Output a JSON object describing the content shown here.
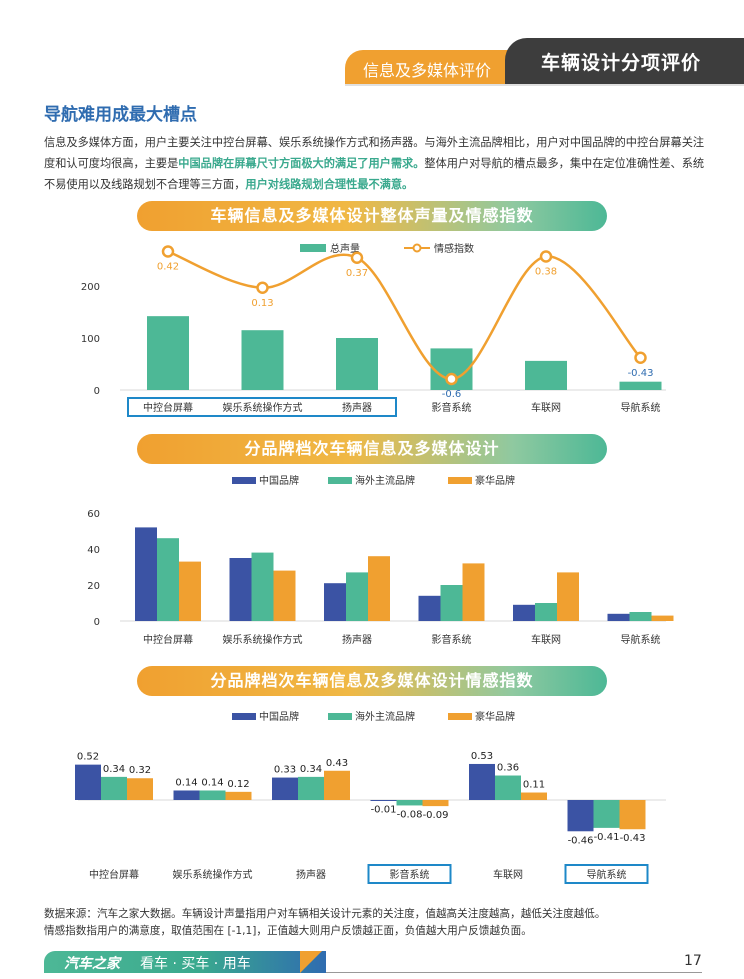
{
  "header": {
    "section_tab": "信息及多媒体评价",
    "current_tab": "车辆设计分项评价"
  },
  "section_title": "导航难用成最大槽点",
  "paragraph": {
    "p1": "信息及多媒体方面，用户主要关注中控台屏幕、娱乐系统操作方式和扬声器。与海外主流品牌相比，用户对中国品牌的中控台屏幕关注度和认可度均很高，主要是",
    "h1": "中国品牌在屏幕尺寸方面极大的满足了用户需求。",
    "p2": "整体用户对导航的槽点最多，集中在定位准确性差、系统不易使用以及线路规划不合理等三方面，",
    "h2": "用户对线路规划合理性最不满意。"
  },
  "colors": {
    "green": "#4db896",
    "orange": "#f0a030",
    "blue": "#3b53a4",
    "highlight": "#3aa98e",
    "negative_label": "#2f6cb0",
    "box": "#1e88c8"
  },
  "chart_data": [
    {
      "type": "bar",
      "title": "车辆信息及多媒体设计整体声量及情感指数",
      "categories": [
        "中控台屏幕",
        "娱乐系统操作方式",
        "扬声器",
        "影音系统",
        "车联网",
        "导航系统"
      ],
      "series": [
        {
          "name": "总声量",
          "type": "bar",
          "values": [
            142,
            115,
            100,
            80,
            56,
            16
          ]
        },
        {
          "name": "情感指数",
          "type": "line",
          "values": [
            0.42,
            0.13,
            0.37,
            -0.6,
            0.38,
            -0.43
          ]
        }
      ],
      "yticks": [
        "0",
        "100",
        "200"
      ],
      "ylim": [
        0,
        200
      ],
      "highlight_categories": [
        "中控台屏幕",
        "娱乐系统操作方式",
        "扬声器"
      ]
    },
    {
      "type": "bar",
      "title": "分品牌档次车辆信息及多媒体设计",
      "categories": [
        "中控台屏幕",
        "娱乐系统操作方式",
        "扬声器",
        "影音系统",
        "车联网",
        "导航系统"
      ],
      "series": [
        {
          "name": "中国品牌",
          "values": [
            52,
            35,
            21,
            14,
            9,
            4
          ]
        },
        {
          "name": "海外主流品牌",
          "values": [
            46,
            38,
            27,
            20,
            10,
            5
          ]
        },
        {
          "name": "豪华品牌",
          "values": [
            33,
            28,
            36,
            32,
            27,
            3
          ]
        }
      ],
      "yticks": [
        "0",
        "20",
        "40",
        "60"
      ],
      "ylim": [
        0,
        60
      ]
    },
    {
      "type": "bar",
      "title": "分品牌档次车辆信息及多媒体设计情感指数",
      "categories": [
        "中控台屏幕",
        "娱乐系统操作方式",
        "扬声器",
        "影音系统",
        "车联网",
        "导航系统"
      ],
      "series": [
        {
          "name": "中国品牌",
          "values": [
            0.52,
            0.14,
            0.33,
            -0.01,
            0.53,
            -0.46
          ]
        },
        {
          "name": "海外主流品牌",
          "values": [
            0.34,
            0.14,
            0.34,
            -0.08,
            0.36,
            -0.41
          ]
        },
        {
          "name": "豪华品牌",
          "values": [
            0.32,
            0.12,
            0.43,
            -0.09,
            0.11,
            -0.43
          ]
        }
      ],
      "highlight_categories": [
        "影音系统",
        "导航系统"
      ]
    }
  ],
  "note": {
    "line1": "数据来源：汽车之家大数据。车辆设计声量指用户对车辆相关设计元素的关注度，值越高关注度越高，越低关注度越低。",
    "line2": "情感指数指用户的满意度，取值范围在 [-1,1]，正值越大则用户反馈越正面，负值越大用户反馈越负面。"
  },
  "footer": {
    "brand": "汽车之家",
    "slogan": "看车 · 买车 · 用车",
    "page": "17"
  }
}
